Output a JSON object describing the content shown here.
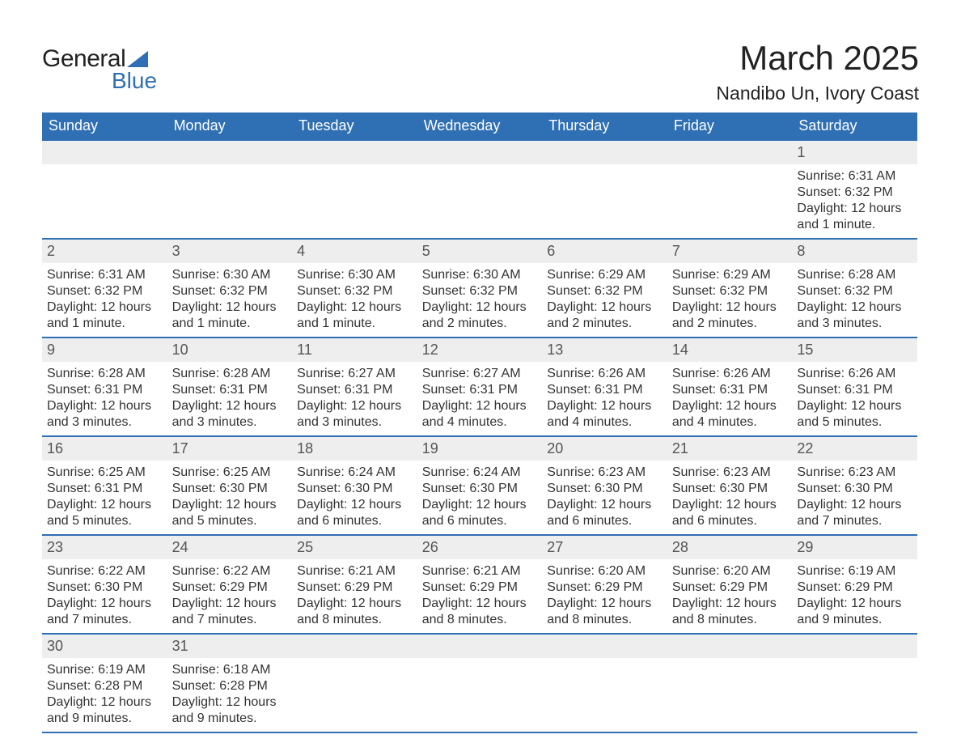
{
  "logo": {
    "textA": "General",
    "textB": "Blue",
    "tri_color": "#2f6fb3"
  },
  "title": "March 2025",
  "subtitle": "Nandibo Un, Ivory Coast",
  "colors": {
    "header_bg": "#2f6fb3",
    "header_text": "#ffffff",
    "row_sep": "#2f6fb3",
    "day_bg": "#eeeeee",
    "text": "#333333",
    "bg": "#ffffff"
  },
  "weekdays": [
    "Sunday",
    "Monday",
    "Tuesday",
    "Wednesday",
    "Thursday",
    "Friday",
    "Saturday"
  ],
  "weeks": [
    [
      {
        "n": "",
        "sr": "",
        "ss": "",
        "dl": ""
      },
      {
        "n": "",
        "sr": "",
        "ss": "",
        "dl": ""
      },
      {
        "n": "",
        "sr": "",
        "ss": "",
        "dl": ""
      },
      {
        "n": "",
        "sr": "",
        "ss": "",
        "dl": ""
      },
      {
        "n": "",
        "sr": "",
        "ss": "",
        "dl": ""
      },
      {
        "n": "",
        "sr": "",
        "ss": "",
        "dl": ""
      },
      {
        "n": "1",
        "sr": "Sunrise: 6:31 AM",
        "ss": "Sunset: 6:32 PM",
        "dl": "Daylight: 12 hours and 1 minute."
      }
    ],
    [
      {
        "n": "2",
        "sr": "Sunrise: 6:31 AM",
        "ss": "Sunset: 6:32 PM",
        "dl": "Daylight: 12 hours and 1 minute."
      },
      {
        "n": "3",
        "sr": "Sunrise: 6:30 AM",
        "ss": "Sunset: 6:32 PM",
        "dl": "Daylight: 12 hours and 1 minute."
      },
      {
        "n": "4",
        "sr": "Sunrise: 6:30 AM",
        "ss": "Sunset: 6:32 PM",
        "dl": "Daylight: 12 hours and 1 minute."
      },
      {
        "n": "5",
        "sr": "Sunrise: 6:30 AM",
        "ss": "Sunset: 6:32 PM",
        "dl": "Daylight: 12 hours and 2 minutes."
      },
      {
        "n": "6",
        "sr": "Sunrise: 6:29 AM",
        "ss": "Sunset: 6:32 PM",
        "dl": "Daylight: 12 hours and 2 minutes."
      },
      {
        "n": "7",
        "sr": "Sunrise: 6:29 AM",
        "ss": "Sunset: 6:32 PM",
        "dl": "Daylight: 12 hours and 2 minutes."
      },
      {
        "n": "8",
        "sr": "Sunrise: 6:28 AM",
        "ss": "Sunset: 6:32 PM",
        "dl": "Daylight: 12 hours and 3 minutes."
      }
    ],
    [
      {
        "n": "9",
        "sr": "Sunrise: 6:28 AM",
        "ss": "Sunset: 6:31 PM",
        "dl": "Daylight: 12 hours and 3 minutes."
      },
      {
        "n": "10",
        "sr": "Sunrise: 6:28 AM",
        "ss": "Sunset: 6:31 PM",
        "dl": "Daylight: 12 hours and 3 minutes."
      },
      {
        "n": "11",
        "sr": "Sunrise: 6:27 AM",
        "ss": "Sunset: 6:31 PM",
        "dl": "Daylight: 12 hours and 3 minutes."
      },
      {
        "n": "12",
        "sr": "Sunrise: 6:27 AM",
        "ss": "Sunset: 6:31 PM",
        "dl": "Daylight: 12 hours and 4 minutes."
      },
      {
        "n": "13",
        "sr": "Sunrise: 6:26 AM",
        "ss": "Sunset: 6:31 PM",
        "dl": "Daylight: 12 hours and 4 minutes."
      },
      {
        "n": "14",
        "sr": "Sunrise: 6:26 AM",
        "ss": "Sunset: 6:31 PM",
        "dl": "Daylight: 12 hours and 4 minutes."
      },
      {
        "n": "15",
        "sr": "Sunrise: 6:26 AM",
        "ss": "Sunset: 6:31 PM",
        "dl": "Daylight: 12 hours and 5 minutes."
      }
    ],
    [
      {
        "n": "16",
        "sr": "Sunrise: 6:25 AM",
        "ss": "Sunset: 6:31 PM",
        "dl": "Daylight: 12 hours and 5 minutes."
      },
      {
        "n": "17",
        "sr": "Sunrise: 6:25 AM",
        "ss": "Sunset: 6:30 PM",
        "dl": "Daylight: 12 hours and 5 minutes."
      },
      {
        "n": "18",
        "sr": "Sunrise: 6:24 AM",
        "ss": "Sunset: 6:30 PM",
        "dl": "Daylight: 12 hours and 6 minutes."
      },
      {
        "n": "19",
        "sr": "Sunrise: 6:24 AM",
        "ss": "Sunset: 6:30 PM",
        "dl": "Daylight: 12 hours and 6 minutes."
      },
      {
        "n": "20",
        "sr": "Sunrise: 6:23 AM",
        "ss": "Sunset: 6:30 PM",
        "dl": "Daylight: 12 hours and 6 minutes."
      },
      {
        "n": "21",
        "sr": "Sunrise: 6:23 AM",
        "ss": "Sunset: 6:30 PM",
        "dl": "Daylight: 12 hours and 6 minutes."
      },
      {
        "n": "22",
        "sr": "Sunrise: 6:23 AM",
        "ss": "Sunset: 6:30 PM",
        "dl": "Daylight: 12 hours and 7 minutes."
      }
    ],
    [
      {
        "n": "23",
        "sr": "Sunrise: 6:22 AM",
        "ss": "Sunset: 6:30 PM",
        "dl": "Daylight: 12 hours and 7 minutes."
      },
      {
        "n": "24",
        "sr": "Sunrise: 6:22 AM",
        "ss": "Sunset: 6:29 PM",
        "dl": "Daylight: 12 hours and 7 minutes."
      },
      {
        "n": "25",
        "sr": "Sunrise: 6:21 AM",
        "ss": "Sunset: 6:29 PM",
        "dl": "Daylight: 12 hours and 8 minutes."
      },
      {
        "n": "26",
        "sr": "Sunrise: 6:21 AM",
        "ss": "Sunset: 6:29 PM",
        "dl": "Daylight: 12 hours and 8 minutes."
      },
      {
        "n": "27",
        "sr": "Sunrise: 6:20 AM",
        "ss": "Sunset: 6:29 PM",
        "dl": "Daylight: 12 hours and 8 minutes."
      },
      {
        "n": "28",
        "sr": "Sunrise: 6:20 AM",
        "ss": "Sunset: 6:29 PM",
        "dl": "Daylight: 12 hours and 8 minutes."
      },
      {
        "n": "29",
        "sr": "Sunrise: 6:19 AM",
        "ss": "Sunset: 6:29 PM",
        "dl": "Daylight: 12 hours and 9 minutes."
      }
    ],
    [
      {
        "n": "30",
        "sr": "Sunrise: 6:19 AM",
        "ss": "Sunset: 6:28 PM",
        "dl": "Daylight: 12 hours and 9 minutes."
      },
      {
        "n": "31",
        "sr": "Sunrise: 6:18 AM",
        "ss": "Sunset: 6:28 PM",
        "dl": "Daylight: 12 hours and 9 minutes."
      },
      {
        "n": "",
        "sr": "",
        "ss": "",
        "dl": ""
      },
      {
        "n": "",
        "sr": "",
        "ss": "",
        "dl": ""
      },
      {
        "n": "",
        "sr": "",
        "ss": "",
        "dl": ""
      },
      {
        "n": "",
        "sr": "",
        "ss": "",
        "dl": ""
      },
      {
        "n": "",
        "sr": "",
        "ss": "",
        "dl": ""
      }
    ]
  ]
}
